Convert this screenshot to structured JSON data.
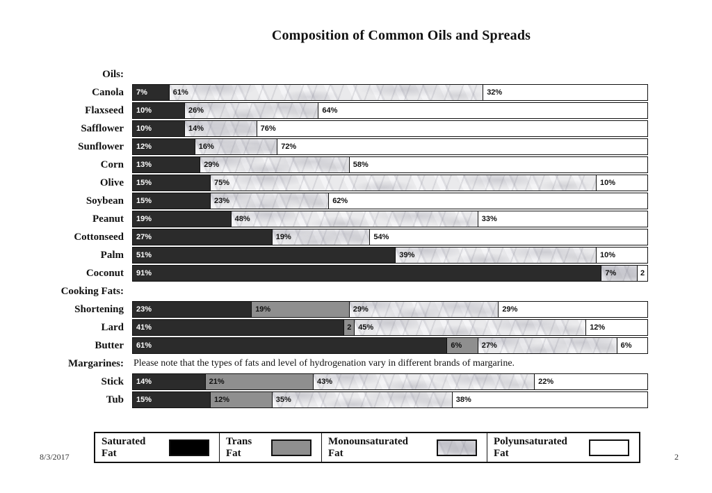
{
  "chart_data": {
    "type": "bar",
    "orientation": "horizontal",
    "stacked": true,
    "unit": "percent",
    "xlim": [
      0,
      100
    ],
    "title": "Composition of Common Oils and Spreads",
    "series_names": [
      "Saturated Fat",
      "Trans Fat",
      "Monounsaturated Fat",
      "Polyunsaturated Fat"
    ],
    "sections": [
      {
        "label": "Oils:",
        "note": "",
        "rows": [
          {
            "category": "Canola",
            "segments": [
              {
                "series": "saturated",
                "value": 7,
                "label": "7%"
              },
              {
                "series": "mono",
                "value": 61,
                "label": "61%"
              },
              {
                "series": "poly",
                "value": 32,
                "label": "32%"
              }
            ]
          },
          {
            "category": "Flaxseed",
            "segments": [
              {
                "series": "saturated",
                "value": 10,
                "label": "10%"
              },
              {
                "series": "mono",
                "value": 26,
                "label": "26%"
              },
              {
                "series": "poly",
                "value": 64,
                "label": "64%"
              }
            ]
          },
          {
            "category": "Safflower",
            "segments": [
              {
                "series": "saturated",
                "value": 10,
                "label": "10%"
              },
              {
                "series": "mono",
                "value": 14,
                "label": "14%"
              },
              {
                "series": "poly",
                "value": 76,
                "label": "76%"
              }
            ]
          },
          {
            "category": "Sunflower",
            "segments": [
              {
                "series": "saturated",
                "value": 12,
                "label": "12%"
              },
              {
                "series": "mono",
                "value": 16,
                "label": "16%"
              },
              {
                "series": "poly",
                "value": 72,
                "label": "72%"
              }
            ]
          },
          {
            "category": "Corn",
            "segments": [
              {
                "series": "saturated",
                "value": 13,
                "label": "13%"
              },
              {
                "series": "mono",
                "value": 29,
                "label": "29%"
              },
              {
                "series": "poly",
                "value": 58,
                "label": "58%"
              }
            ]
          },
          {
            "category": "Olive",
            "segments": [
              {
                "series": "saturated",
                "value": 15,
                "label": "15%"
              },
              {
                "series": "mono",
                "value": 75,
                "label": "75%"
              },
              {
                "series": "poly",
                "value": 10,
                "label": "10%"
              }
            ]
          },
          {
            "category": "Soybean",
            "segments": [
              {
                "series": "saturated",
                "value": 15,
                "label": "15%"
              },
              {
                "series": "mono",
                "value": 23,
                "label": "23%"
              },
              {
                "series": "poly",
                "value": 62,
                "label": "62%"
              }
            ]
          },
          {
            "category": "Peanut",
            "segments": [
              {
                "series": "saturated",
                "value": 19,
                "label": "19%"
              },
              {
                "series": "mono",
                "value": 48,
                "label": "48%"
              },
              {
                "series": "poly",
                "value": 33,
                "label": "33%"
              }
            ]
          },
          {
            "category": "Cottonseed",
            "segments": [
              {
                "series": "saturated",
                "value": 27,
                "label": "27%"
              },
              {
                "series": "mono",
                "value": 19,
                "label": "19%"
              },
              {
                "series": "poly",
                "value": 54,
                "label": "54%"
              }
            ]
          },
          {
            "category": "Palm",
            "segments": [
              {
                "series": "saturated",
                "value": 51,
                "label": "51%"
              },
              {
                "series": "mono",
                "value": 39,
                "label": "39%"
              },
              {
                "series": "poly",
                "value": 10,
                "label": "10%"
              }
            ]
          },
          {
            "category": "Coconut",
            "segments": [
              {
                "series": "saturated",
                "value": 91,
                "label": "91%"
              },
              {
                "series": "mono",
                "value": 7,
                "label": "7%"
              },
              {
                "series": "poly",
                "value": 2,
                "label": "2"
              }
            ]
          }
        ]
      },
      {
        "label": "Cooking Fats:",
        "note": "",
        "rows": [
          {
            "category": "Shortening",
            "segments": [
              {
                "series": "saturated",
                "value": 23,
                "label": "23%"
              },
              {
                "series": "trans",
                "value": 19,
                "label": "19%"
              },
              {
                "series": "mono",
                "value": 29,
                "label": "29%"
              },
              {
                "series": "poly",
                "value": 29,
                "label": "29%"
              }
            ]
          },
          {
            "category": "Lard",
            "segments": [
              {
                "series": "saturated",
                "value": 41,
                "label": "41%"
              },
              {
                "series": "trans",
                "value": 2,
                "label": "2"
              },
              {
                "series": "mono",
                "value": 45,
                "label": "45%"
              },
              {
                "series": "poly",
                "value": 12,
                "label": "12%"
              }
            ]
          },
          {
            "category": "Butter",
            "segments": [
              {
                "series": "saturated",
                "value": 61,
                "label": "61%"
              },
              {
                "series": "trans",
                "value": 6,
                "label": "6%"
              },
              {
                "series": "mono",
                "value": 27,
                "label": "27%"
              },
              {
                "series": "poly",
                "value": 6,
                "label": "6%"
              }
            ]
          }
        ]
      },
      {
        "label": "Margarines:",
        "note": "Please note that the types of fats and level of hydrogenation vary in different brands of margarine.",
        "rows": [
          {
            "category": "Stick",
            "segments": [
              {
                "series": "saturated",
                "value": 14,
                "label": "14%"
              },
              {
                "series": "trans",
                "value": 21,
                "label": "21%"
              },
              {
                "series": "mono",
                "value": 43,
                "label": "43%"
              },
              {
                "series": "poly",
                "value": 22,
                "label": "22%"
              }
            ]
          },
          {
            "category": "Tub",
            "segments": [
              {
                "series": "saturated",
                "value": 15,
                "label": "15%"
              },
              {
                "series": "trans",
                "value": 12,
                "label": "12%"
              },
              {
                "series": "mono",
                "value": 35,
                "label": "35%"
              },
              {
                "series": "poly",
                "value": 38,
                "label": "38%"
              }
            ]
          }
        ]
      }
    ]
  },
  "legend": {
    "items": [
      {
        "line1": "Saturated",
        "line2": "Fat",
        "swatch": "saturated"
      },
      {
        "line1": "Trans",
        "line2": "Fat",
        "swatch": "trans"
      },
      {
        "line1": "Monounsaturated",
        "line2": "Fat",
        "swatch": "mono"
      },
      {
        "line1": "Polyunsaturated",
        "line2": "Fat",
        "swatch": "poly"
      }
    ]
  },
  "footer": {
    "date": "8/3/2017",
    "page": "2"
  },
  "colors": {
    "saturated_bar": "#2b2b2b",
    "saturated_legend": "#000000",
    "trans": "#8f8f8f",
    "mono_base": "#eaeaec",
    "mono_vein": "#b8b8c0",
    "poly": "#ffffff",
    "border": "#0f0f0f"
  }
}
